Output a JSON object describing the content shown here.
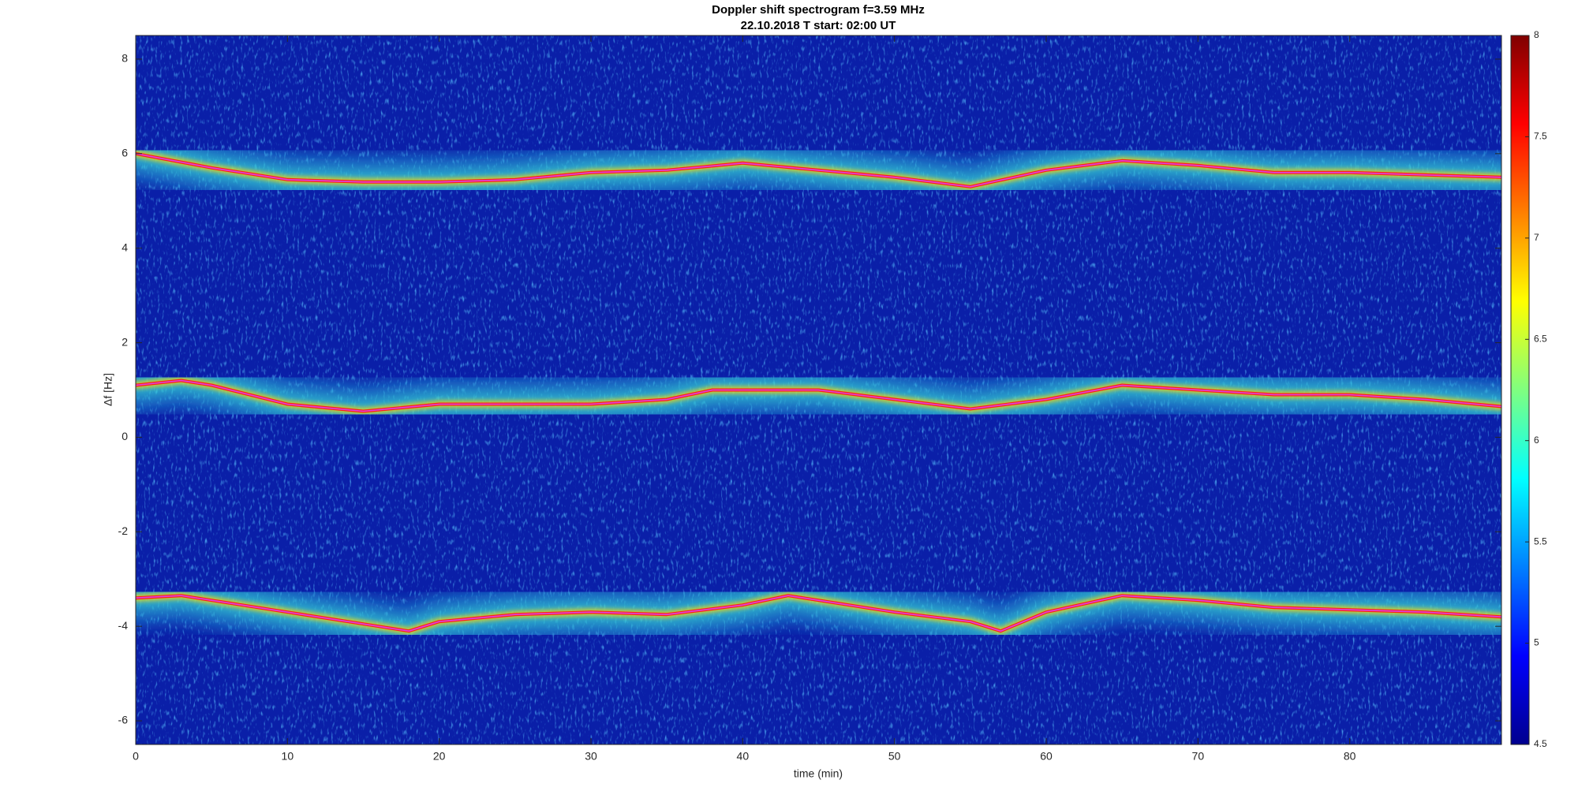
{
  "chart_data": {
    "type": "spectrogram",
    "title": "Doppler shift spectrogram f=3.59 MHz",
    "subtitle": "22.10.2018    T start: 02:00 UT",
    "x_label": "time (min)",
    "y_label": "Δf [Hz]",
    "xlim": [
      0,
      90
    ],
    "xticks": [
      0,
      10,
      20,
      30,
      40,
      50,
      60,
      70,
      80
    ],
    "ylim": [
      -6.5,
      8.5
    ],
    "yticks": [
      -6,
      -4,
      -2,
      0,
      2,
      4,
      6,
      8
    ],
    "clim": [
      4.5,
      8
    ],
    "cticks": [
      4.5,
      5,
      5.5,
      6,
      6.5,
      7,
      7.5,
      8
    ],
    "colormap": "jet",
    "series": [
      {
        "color": "#e040e0",
        "x": [
          0,
          5,
          10,
          15,
          20,
          25,
          30,
          35,
          40,
          45,
          50,
          55,
          60,
          65,
          70,
          75,
          80,
          85,
          90
        ],
        "values": [
          6.0,
          5.7,
          5.45,
          5.4,
          5.4,
          5.45,
          5.6,
          5.65,
          5.8,
          5.65,
          5.5,
          5.3,
          5.65,
          5.85,
          5.75,
          5.6,
          5.6,
          5.55,
          5.5
        ]
      },
      {
        "color": "#e040e0",
        "x": [
          0,
          3,
          5,
          10,
          15,
          20,
          25,
          30,
          35,
          38,
          45,
          50,
          55,
          60,
          65,
          70,
          75,
          80,
          85,
          90
        ],
        "values": [
          1.1,
          1.2,
          1.1,
          0.7,
          0.55,
          0.7,
          0.7,
          0.7,
          0.8,
          1.0,
          1.0,
          0.8,
          0.6,
          0.8,
          1.1,
          1.0,
          0.9,
          0.9,
          0.8,
          0.65
        ]
      },
      {
        "color": "#e040e0",
        "x": [
          0,
          3,
          5,
          10,
          15,
          18,
          20,
          25,
          30,
          35,
          40,
          43,
          45,
          50,
          55,
          57,
          60,
          65,
          70,
          75,
          80,
          85,
          90
        ],
        "values": [
          -3.4,
          -3.35,
          -3.45,
          -3.7,
          -3.95,
          -4.1,
          -3.9,
          -3.75,
          -3.7,
          -3.75,
          -3.55,
          -3.35,
          -3.45,
          -3.7,
          -3.9,
          -4.1,
          -3.7,
          -3.35,
          -3.45,
          -3.6,
          -3.65,
          -3.7,
          -3.8
        ]
      }
    ]
  }
}
